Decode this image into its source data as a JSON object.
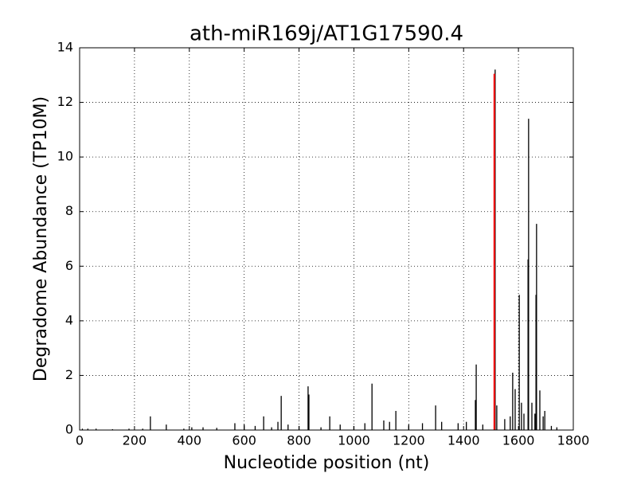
{
  "chart_data": {
    "type": "stem",
    "title": "ath-miR169j/AT1G17590.4",
    "x_label": "Nucleotide position (nt)",
    "y_label": "Degradome Abundance (TP10M)",
    "xlim": [
      0,
      1800
    ],
    "xticks": [
      0,
      200,
      400,
      600,
      800,
      1000,
      1200,
      1400,
      1600,
      1800
    ],
    "ylim": [
      0,
      14
    ],
    "yticks": [
      0,
      2,
      4,
      6,
      8,
      10,
      12,
      14
    ],
    "grid": true,
    "series": [
      {
        "color": "#000000",
        "x": [
          10,
          30,
          60,
          120,
          180,
          230,
          258,
          316,
          380,
          409,
          450,
          500,
          566,
          600,
          640,
          671,
          700,
          723,
          735,
          760,
          800,
          833,
          836,
          880,
          912,
          950,
          1000,
          1040,
          1066,
          1109,
          1130,
          1153,
          1200,
          1250,
          1298,
          1320,
          1380,
          1410,
          1443,
          1446,
          1470,
          1515,
          1521,
          1550,
          1570,
          1579,
          1588,
          1603,
          1611,
          1620,
          1635,
          1637,
          1649,
          1660,
          1664,
          1666,
          1678,
          1690,
          1696,
          1720,
          1740
        ],
        "values": [
          0.05,
          0.05,
          0.05,
          0.03,
          0.05,
          0.05,
          0.5,
          0.2,
          0.05,
          0.1,
          0.1,
          0.08,
          0.25,
          0.2,
          0.15,
          0.5,
          0.1,
          0.3,
          1.25,
          0.2,
          0.15,
          1.6,
          1.3,
          0.1,
          0.5,
          0.2,
          0.15,
          0.25,
          1.7,
          0.35,
          0.3,
          0.7,
          0.2,
          0.25,
          0.9,
          0.3,
          0.25,
          0.3,
          1.1,
          2.4,
          0.2,
          13.2,
          0.9,
          0.4,
          0.5,
          2.1,
          1.5,
          4.95,
          1.0,
          0.6,
          6.25,
          11.4,
          1.0,
          0.6,
          4.95,
          7.55,
          1.45,
          0.5,
          0.7,
          0.15,
          0.1
        ]
      },
      {
        "color": "#ff0000",
        "x": [
          1512
        ],
        "values": [
          13.05
        ]
      }
    ]
  }
}
